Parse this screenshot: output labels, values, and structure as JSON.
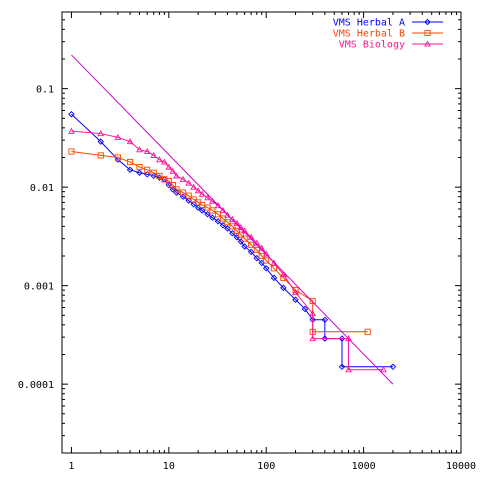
{
  "chart_data": {
    "type": "line",
    "title": "",
    "xlabel": "",
    "ylabel": "",
    "x_scale": "log",
    "y_scale": "log",
    "xlim": [
      0.8,
      10000
    ],
    "ylim": [
      2e-05,
      0.6
    ],
    "x_ticks": [
      {
        "value": 1,
        "label": "1"
      },
      {
        "value": 10,
        "label": "10"
      },
      {
        "value": 100,
        "label": "100"
      },
      {
        "value": 1000,
        "label": "1000"
      },
      {
        "value": 10000,
        "label": "10000"
      }
    ],
    "y_ticks": [
      {
        "value": 0.1,
        "label": "0.1"
      },
      {
        "value": 0.01,
        "label": "0.01"
      },
      {
        "value": 0.001,
        "label": "0.001"
      },
      {
        "value": 0.0001,
        "label": "0.0001"
      }
    ],
    "grid": false,
    "legend_position": "top-right",
    "series": [
      {
        "name": "VMS Herbal A",
        "color": "#0000ff",
        "marker": "diamond",
        "points": [
          [
            1,
            0.055
          ],
          [
            2,
            0.029
          ],
          [
            3,
            0.019
          ],
          [
            4,
            0.015
          ],
          [
            5,
            0.014
          ],
          [
            6,
            0.0135
          ],
          [
            7,
            0.013
          ],
          [
            8,
            0.0125
          ],
          [
            9,
            0.012
          ],
          [
            10,
            0.0105
          ],
          [
            11,
            0.0095
          ],
          [
            12,
            0.0088
          ],
          [
            14,
            0.008
          ],
          [
            16,
            0.0073
          ],
          [
            18,
            0.0067
          ],
          [
            20,
            0.0062
          ],
          [
            22,
            0.0058
          ],
          [
            25,
            0.0053
          ],
          [
            28,
            0.0049
          ],
          [
            32,
            0.0045
          ],
          [
            36,
            0.0041
          ],
          [
            40,
            0.0038
          ],
          [
            45,
            0.0034
          ],
          [
            50,
            0.0031
          ],
          [
            55,
            0.0028
          ],
          [
            60,
            0.0025
          ],
          [
            70,
            0.0022
          ],
          [
            80,
            0.0019
          ],
          [
            90,
            0.0017
          ],
          [
            100,
            0.0015
          ],
          [
            120,
            0.0012
          ],
          [
            150,
            0.00095
          ],
          [
            200,
            0.00072
          ],
          [
            250,
            0.00058
          ],
          [
            300,
            0.00045
          ],
          [
            400,
            0.00045
          ],
          [
            400,
            0.00029
          ],
          [
            600,
            0.00029
          ],
          [
            600,
            0.00015
          ],
          [
            2000,
            0.00015
          ]
        ]
      },
      {
        "name": "VMS Herbal B",
        "color": "#ff4400",
        "marker": "square",
        "points": [
          [
            1,
            0.023
          ],
          [
            2,
            0.021
          ],
          [
            3,
            0.02
          ],
          [
            4,
            0.018
          ],
          [
            5,
            0.016
          ],
          [
            6,
            0.015
          ],
          [
            7,
            0.014
          ],
          [
            8,
            0.013
          ],
          [
            9,
            0.012
          ],
          [
            10,
            0.0115
          ],
          [
            11,
            0.0105
          ],
          [
            12,
            0.0095
          ],
          [
            14,
            0.0088
          ],
          [
            16,
            0.0082
          ],
          [
            18,
            0.0075
          ],
          [
            20,
            0.007
          ],
          [
            22,
            0.0066
          ],
          [
            25,
            0.0062
          ],
          [
            28,
            0.0058
          ],
          [
            32,
            0.0053
          ],
          [
            36,
            0.0048
          ],
          [
            40,
            0.0044
          ],
          [
            45,
            0.004
          ],
          [
            50,
            0.0036
          ],
          [
            55,
            0.0033
          ],
          [
            60,
            0.003
          ],
          [
            70,
            0.0026
          ],
          [
            80,
            0.0023
          ],
          [
            90,
            0.002
          ],
          [
            100,
            0.0018
          ],
          [
            120,
            0.0015
          ],
          [
            150,
            0.0012
          ],
          [
            200,
            0.0009
          ],
          [
            300,
            0.0007
          ],
          [
            300,
            0.00034
          ],
          [
            1100,
            0.00034
          ]
        ]
      },
      {
        "name": "VMS Biology",
        "color": "#ff1493",
        "marker": "triangle",
        "points": [
          [
            1,
            0.037
          ],
          [
            2,
            0.035
          ],
          [
            3,
            0.032
          ],
          [
            4,
            0.029
          ],
          [
            5,
            0.024
          ],
          [
            6,
            0.023
          ],
          [
            7,
            0.021
          ],
          [
            8,
            0.019
          ],
          [
            9,
            0.018
          ],
          [
            10,
            0.016
          ],
          [
            11,
            0.0145
          ],
          [
            12,
            0.013
          ],
          [
            14,
            0.012
          ],
          [
            16,
            0.011
          ],
          [
            18,
            0.01
          ],
          [
            20,
            0.0092
          ],
          [
            22,
            0.0085
          ],
          [
            25,
            0.0078
          ],
          [
            28,
            0.0072
          ],
          [
            32,
            0.0065
          ],
          [
            36,
            0.0058
          ],
          [
            40,
            0.0052
          ],
          [
            45,
            0.0047
          ],
          [
            50,
            0.0043
          ],
          [
            55,
            0.0039
          ],
          [
            60,
            0.0036
          ],
          [
            70,
            0.0031
          ],
          [
            80,
            0.0027
          ],
          [
            90,
            0.0024
          ],
          [
            100,
            0.0021
          ],
          [
            120,
            0.0017
          ],
          [
            150,
            0.0013
          ],
          [
            200,
            0.00085
          ],
          [
            300,
            0.00052
          ],
          [
            300,
            0.00029
          ],
          [
            700,
            0.00029
          ],
          [
            700,
            0.00014
          ],
          [
            1600,
            0.00014
          ]
        ]
      },
      {
        "name": "",
        "color": "#cc00cc",
        "marker": "none",
        "points": [
          [
            1,
            0.22
          ],
          [
            2000,
            0.0001
          ]
        ]
      }
    ]
  }
}
